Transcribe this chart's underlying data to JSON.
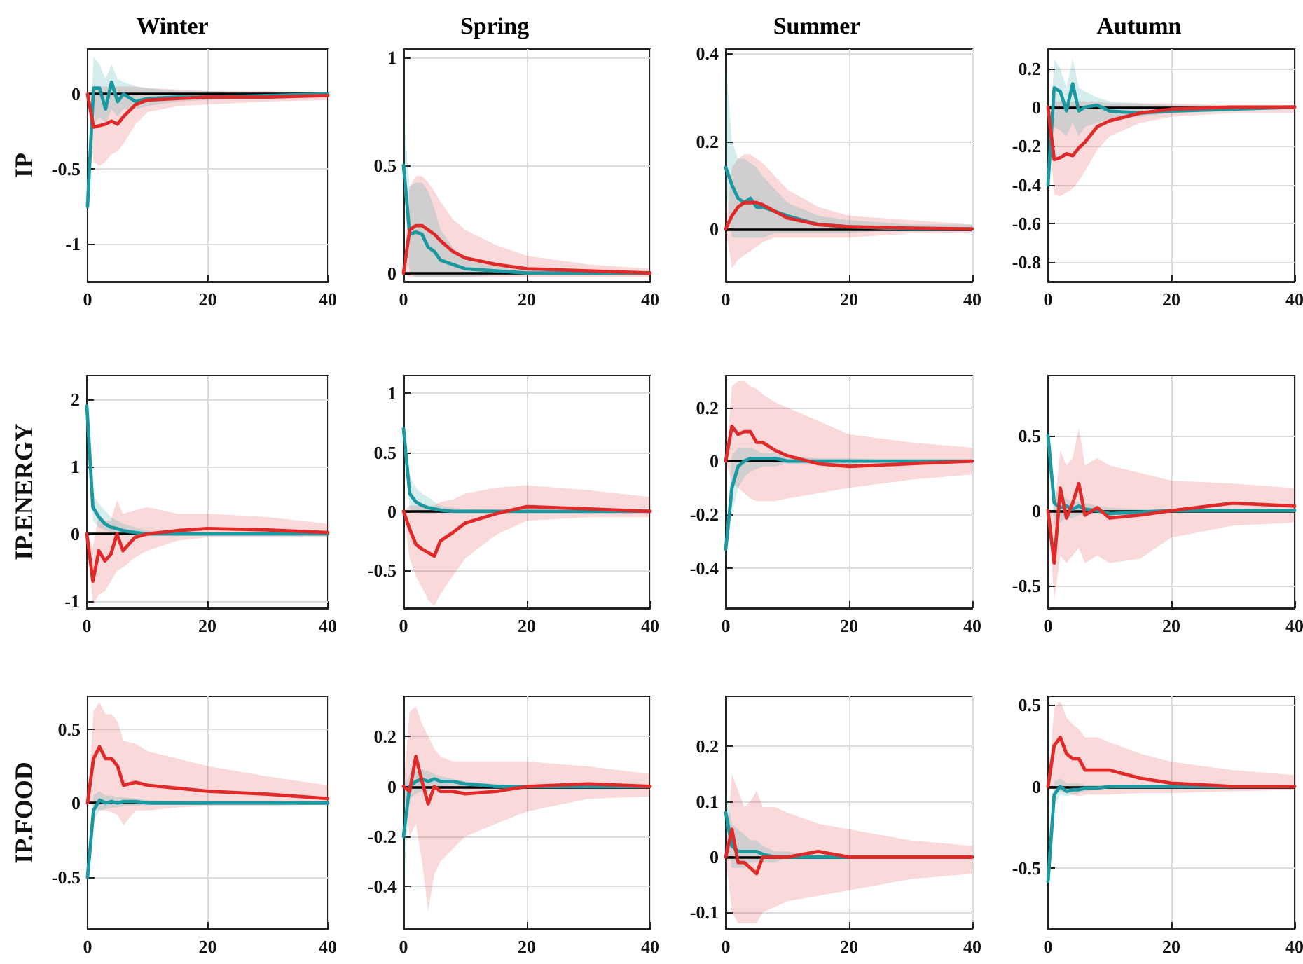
{
  "chart_data": [
    {
      "type": "line",
      "title": "Winter",
      "ylabel": "IP",
      "x": [
        0,
        1,
        2,
        3,
        4,
        5,
        6,
        8,
        10,
        15,
        20,
        30,
        40
      ],
      "xlim": [
        0,
        40
      ],
      "xticks": [
        0,
        20,
        40
      ],
      "ylim": [
        -1.25,
        0.3
      ],
      "yticks": [
        -1,
        -0.5,
        0
      ],
      "grid": true,
      "ref_lines": [
        {
          "axis": "y",
          "value": 0,
          "color": "#000000"
        }
      ],
      "series": [
        {
          "color": "#e02a2a",
          "values": [
            0,
            -0.22,
            -0.21,
            -0.2,
            -0.18,
            -0.2,
            -0.15,
            -0.07,
            -0.04,
            -0.03,
            -0.02,
            -0.02,
            -0.01
          ],
          "lower": [
            0,
            -0.45,
            -0.48,
            -0.45,
            -0.4,
            -0.38,
            -0.33,
            -0.2,
            -0.12,
            -0.08,
            -0.07,
            -0.05,
            -0.04
          ],
          "upper": [
            0,
            0.05,
            0.05,
            0.05,
            0.05,
            0.05,
            0.05,
            0.05,
            0.04,
            0.03,
            0.02,
            0.02,
            0.01
          ]
        },
        {
          "color": "#1a9aa0",
          "values": [
            -0.75,
            0.04,
            0.04,
            -0.1,
            0.08,
            -0.05,
            0,
            -0.05,
            -0.03,
            -0.02,
            -0.02,
            -0.01,
            0
          ],
          "lower": [
            -0.75,
            -0.2,
            -0.15,
            -0.2,
            -0.1,
            -0.15,
            -0.1,
            -0.1,
            -0.08,
            -0.05,
            -0.04,
            -0.02,
            -0.01
          ],
          "upper": [
            -0.75,
            0.25,
            0.2,
            0.1,
            0.2,
            0.1,
            0.08,
            0.05,
            0.04,
            0.02,
            0.02,
            0.01,
            0.01
          ]
        }
      ]
    },
    {
      "type": "line",
      "title": "Spring",
      "x": [
        0,
        1,
        2,
        3,
        4,
        5,
        6,
        8,
        10,
        15,
        20,
        30,
        40
      ],
      "xlim": [
        0,
        40
      ],
      "xticks": [
        0,
        20,
        40
      ],
      "ylim": [
        -0.04,
        1.04
      ],
      "yticks": [
        0,
        0.5,
        1
      ],
      "grid": true,
      "ref_lines": [
        {
          "axis": "y",
          "value": 0,
          "color": "#000000"
        }
      ],
      "series": [
        {
          "color": "#e02a2a",
          "values": [
            0,
            0.2,
            0.22,
            0.22,
            0.2,
            0.18,
            0.15,
            0.1,
            0.07,
            0.04,
            0.02,
            0.01,
            0
          ],
          "lower": [
            0,
            -0.02,
            -0.02,
            -0.02,
            -0.02,
            -0.02,
            -0.02,
            -0.02,
            -0.02,
            -0.02,
            -0.02,
            -0.02,
            -0.02
          ],
          "upper": [
            0,
            0.4,
            0.45,
            0.45,
            0.42,
            0.38,
            0.33,
            0.25,
            0.2,
            0.13,
            0.08,
            0.04,
            0.02
          ]
        },
        {
          "color": "#1a9aa0",
          "values": [
            0.5,
            0.18,
            0.19,
            0.18,
            0.12,
            0.1,
            0.06,
            0.04,
            0.02,
            0.01,
            0,
            0,
            0
          ],
          "lower": [
            0.45,
            0,
            -0.02,
            -0.02,
            -0.02,
            -0.02,
            -0.02,
            -0.02,
            -0.02,
            -0.01,
            -0.01,
            -0.01,
            -0.01
          ],
          "upper": [
            0.75,
            0.4,
            0.42,
            0.42,
            0.38,
            0.3,
            0.2,
            0.12,
            0.06,
            0.03,
            0.02,
            0.01,
            0.01
          ]
        }
      ]
    },
    {
      "type": "line",
      "title": "Summer",
      "x": [
        0,
        1,
        2,
        3,
        4,
        5,
        6,
        8,
        10,
        15,
        20,
        30,
        40
      ],
      "xlim": [
        0,
        40
      ],
      "xticks": [
        0,
        20,
        40
      ],
      "ylim": [
        -0.12,
        0.41
      ],
      "yticks": [
        0,
        0.2,
        0.4
      ],
      "grid": true,
      "ref_lines": [
        {
          "axis": "y",
          "value": 0,
          "color": "#000000"
        }
      ],
      "series": [
        {
          "color": "#e02a2a",
          "values": [
            0,
            0.03,
            0.05,
            0.06,
            0.06,
            0.06,
            0.055,
            0.04,
            0.025,
            0.01,
            0.005,
            0.002,
            0
          ],
          "lower": [
            0,
            -0.09,
            -0.07,
            -0.06,
            -0.05,
            -0.04,
            -0.03,
            -0.02,
            -0.02,
            -0.02,
            -0.02,
            -0.01,
            -0.01
          ],
          "upper": [
            0,
            0.14,
            0.16,
            0.17,
            0.17,
            0.16,
            0.15,
            0.12,
            0.09,
            0.05,
            0.03,
            0.02,
            0.01
          ]
        },
        {
          "color": "#1a9aa0",
          "values": [
            0.14,
            0.1,
            0.07,
            0.06,
            0.07,
            0.05,
            0.05,
            0.04,
            0.03,
            0.01,
            0.005,
            0,
            0
          ],
          "lower": [
            0.1,
            -0.02,
            -0.02,
            -0.02,
            -0.02,
            -0.02,
            -0.02,
            -0.01,
            -0.01,
            -0.01,
            -0.01,
            0,
            0
          ],
          "upper": [
            0.38,
            0.2,
            0.16,
            0.16,
            0.15,
            0.14,
            0.12,
            0.09,
            0.06,
            0.03,
            0.02,
            0.01,
            0.01
          ]
        }
      ]
    },
    {
      "type": "line",
      "title": "Autumn",
      "x": [
        0,
        1,
        2,
        3,
        4,
        5,
        6,
        8,
        10,
        15,
        20,
        30,
        40
      ],
      "xlim": [
        0,
        40
      ],
      "xticks": [
        0,
        20,
        40
      ],
      "ylim": [
        -0.9,
        0.3
      ],
      "yticks": [
        -0.8,
        -0.6,
        -0.4,
        -0.2,
        0,
        0.2
      ],
      "grid": true,
      "ref_lines": [
        {
          "axis": "y",
          "value": 0,
          "color": "#000000"
        }
      ],
      "series": [
        {
          "color": "#e02a2a",
          "values": [
            0,
            -0.27,
            -0.26,
            -0.24,
            -0.25,
            -0.21,
            -0.18,
            -0.1,
            -0.07,
            -0.03,
            -0.01,
            0,
            0
          ],
          "lower": [
            0,
            -0.45,
            -0.46,
            -0.44,
            -0.42,
            -0.38,
            -0.33,
            -0.22,
            -0.15,
            -0.08,
            -0.05,
            -0.03,
            -0.03
          ],
          "upper": [
            0,
            0.03,
            0.03,
            0.03,
            0.03,
            0.03,
            0.03,
            0.03,
            0.02,
            0.02,
            0.02,
            0.01,
            0.01
          ]
        },
        {
          "color": "#1a9aa0",
          "values": [
            -0.4,
            0.1,
            0.08,
            -0.02,
            0.12,
            -0.02,
            0,
            0.01,
            -0.02,
            -0.03,
            -0.02,
            -0.01,
            0
          ],
          "lower": [
            -0.45,
            -0.1,
            -0.12,
            -0.15,
            -0.08,
            -0.15,
            -0.1,
            -0.08,
            -0.06,
            -0.05,
            -0.03,
            -0.02,
            -0.01
          ],
          "upper": [
            -0.35,
            0.25,
            0.2,
            0.1,
            0.25,
            0.1,
            0.08,
            0.05,
            0.03,
            0.02,
            0.01,
            0.01,
            0.01
          ]
        }
      ]
    },
    {
      "type": "line",
      "ylabel": "IP.ENERGY",
      "x": [
        0,
        1,
        2,
        3,
        4,
        5,
        6,
        8,
        10,
        15,
        20,
        30,
        40
      ],
      "xlim": [
        0,
        40
      ],
      "xticks": [
        0,
        20,
        40
      ],
      "ylim": [
        -1.1,
        2.35
      ],
      "yticks": [
        -1,
        0,
        1,
        2
      ],
      "grid": true,
      "ref_lines": [
        {
          "axis": "y",
          "value": 0,
          "color": "#000000"
        }
      ],
      "series": [
        {
          "color": "#e02a2a",
          "values": [
            0,
            -0.7,
            -0.25,
            -0.4,
            -0.3,
            0,
            -0.25,
            -0.05,
            0,
            0.05,
            0.08,
            0.06,
            0.02
          ],
          "lower": [
            0,
            -1.05,
            -0.9,
            -0.85,
            -0.7,
            -0.55,
            -0.5,
            -0.35,
            -0.25,
            -0.1,
            -0.05,
            -0.05,
            -0.05
          ],
          "upper": [
            0,
            -0.2,
            0.3,
            0.2,
            0.2,
            0.5,
            0.3,
            0.35,
            0.4,
            0.3,
            0.3,
            0.25,
            0.15
          ]
        },
        {
          "color": "#1a9aa0",
          "values": [
            1.9,
            0.4,
            0.25,
            0.15,
            0.1,
            0.08,
            0.05,
            0.02,
            0,
            0,
            0,
            0,
            0
          ],
          "lower": [
            1.9,
            0.2,
            0.1,
            0.05,
            0.03,
            0.02,
            0,
            -0.02,
            -0.02,
            -0.02,
            -0.01,
            -0.01,
            -0.01
          ],
          "upper": [
            2,
            0.6,
            0.45,
            0.35,
            0.25,
            0.2,
            0.15,
            0.1,
            0.05,
            0.03,
            0.02,
            0.02,
            0.01
          ]
        }
      ]
    },
    {
      "type": "line",
      "x": [
        0,
        1,
        2,
        3,
        4,
        5,
        6,
        8,
        10,
        15,
        20,
        30,
        40
      ],
      "xlim": [
        0,
        40
      ],
      "xticks": [
        0,
        20,
        40
      ],
      "ylim": [
        -0.82,
        1.15
      ],
      "yticks": [
        -0.5,
        0,
        0.5,
        1
      ],
      "grid": true,
      "ref_lines": [
        {
          "axis": "y",
          "value": 0,
          "color": "#000000"
        }
      ],
      "series": [
        {
          "color": "#e02a2a",
          "values": [
            0,
            -0.15,
            -0.28,
            -0.32,
            -0.35,
            -0.38,
            -0.25,
            -0.18,
            -0.1,
            -0.02,
            0.04,
            0.02,
            0
          ],
          "lower": [
            0,
            -0.4,
            -0.55,
            -0.65,
            -0.75,
            -0.8,
            -0.7,
            -0.55,
            -0.4,
            -0.2,
            -0.08,
            -0.05,
            -0.05
          ],
          "upper": [
            0,
            0.05,
            0.05,
            0.06,
            0.05,
            0.05,
            0.08,
            0.1,
            0.15,
            0.2,
            0.22,
            0.18,
            0.12
          ]
        },
        {
          "color": "#1a9aa0",
          "values": [
            0.7,
            0.15,
            0.08,
            0.05,
            0.03,
            0.02,
            0.01,
            0,
            0,
            0,
            0,
            0,
            0
          ],
          "lower": [
            0.7,
            0.02,
            0,
            -0.02,
            -0.02,
            -0.02,
            -0.01,
            -0.01,
            -0.01,
            -0.01,
            -0.01,
            -0.01,
            0
          ],
          "upper": [
            0.75,
            0.3,
            0.2,
            0.15,
            0.12,
            0.08,
            0.05,
            0.03,
            0.02,
            0.01,
            0.01,
            0.01,
            0
          ]
        }
      ]
    },
    {
      "type": "line",
      "x": [
        0,
        1,
        2,
        3,
        4,
        5,
        6,
        8,
        10,
        15,
        20,
        30,
        40
      ],
      "xlim": [
        0,
        40
      ],
      "xticks": [
        0,
        20,
        40
      ],
      "ylim": [
        -0.55,
        0.32
      ],
      "yticks": [
        -0.4,
        -0.2,
        0,
        0.2
      ],
      "grid": true,
      "ref_lines": [
        {
          "axis": "y",
          "value": 0,
          "color": "#000000"
        }
      ],
      "series": [
        {
          "color": "#e02a2a",
          "values": [
            0,
            0.13,
            0.1,
            0.11,
            0.11,
            0.07,
            0.07,
            0.04,
            0.02,
            -0.01,
            -0.02,
            -0.01,
            0
          ],
          "lower": [
            0,
            -0.08,
            -0.1,
            -0.12,
            -0.14,
            -0.15,
            -0.15,
            -0.15,
            -0.14,
            -0.12,
            -0.1,
            -0.07,
            -0.05
          ],
          "upper": [
            0,
            0.28,
            0.3,
            0.3,
            0.28,
            0.27,
            0.25,
            0.22,
            0.2,
            0.15,
            0.1,
            0.07,
            0.05
          ]
        },
        {
          "color": "#1a9aa0",
          "values": [
            -0.33,
            -0.1,
            -0.02,
            0,
            0.01,
            0.01,
            0.01,
            0.01,
            0,
            0,
            0,
            0,
            0
          ],
          "lower": [
            -0.35,
            -0.2,
            -0.1,
            -0.06,
            -0.04,
            -0.03,
            -0.02,
            -0.02,
            -0.01,
            -0.01,
            -0.01,
            0,
            0
          ],
          "upper": [
            -0.3,
            0.02,
            0.05,
            0.05,
            0.05,
            0.04,
            0.03,
            0.03,
            0.02,
            0.01,
            0.01,
            0,
            0
          ]
        }
      ]
    },
    {
      "type": "line",
      "x": [
        0,
        1,
        2,
        3,
        4,
        5,
        6,
        8,
        10,
        15,
        20,
        30,
        40
      ],
      "xlim": [
        0,
        40
      ],
      "xticks": [
        0,
        20,
        40
      ],
      "ylim": [
        -0.65,
        0.9
      ],
      "yticks": [
        -0.5,
        0,
        0.5
      ],
      "grid": true,
      "ref_lines": [
        {
          "axis": "y",
          "value": 0,
          "color": "#000000"
        }
      ],
      "series": [
        {
          "color": "#e02a2a",
          "values": [
            0,
            -0.35,
            0.15,
            -0.05,
            0.05,
            0.18,
            -0.03,
            0.02,
            -0.05,
            -0.03,
            0,
            0.05,
            0.03
          ],
          "lower": [
            0,
            -0.6,
            -0.3,
            -0.35,
            -0.3,
            -0.25,
            -0.35,
            -0.3,
            -0.35,
            -0.32,
            -0.18,
            -0.1,
            -0.08
          ],
          "upper": [
            0,
            0,
            0.4,
            0.3,
            0.35,
            0.55,
            0.3,
            0.35,
            0.3,
            0.25,
            0.2,
            0.18,
            0.15
          ]
        },
        {
          "color": "#1a9aa0",
          "values": [
            0.5,
            0.05,
            0.02,
            0.03,
            0.01,
            0.03,
            0.01,
            0,
            -0.02,
            -0.01,
            0,
            0,
            0
          ],
          "lower": [
            0.45,
            -0.1,
            -0.08,
            -0.05,
            -0.05,
            -0.03,
            -0.03,
            -0.02,
            -0.03,
            -0.02,
            -0.01,
            -0.01,
            0
          ],
          "upper": [
            0.55,
            0.15,
            0.1,
            0.08,
            0.06,
            0.06,
            0.05,
            0.03,
            0.02,
            0.01,
            0.01,
            0.01,
            0
          ]
        }
      ]
    },
    {
      "type": "line",
      "ylabel": "IP.FOOD",
      "x": [
        0,
        1,
        2,
        3,
        4,
        5,
        6,
        8,
        10,
        15,
        20,
        30,
        40
      ],
      "xlim": [
        0,
        40
      ],
      "xticks": [
        0,
        20,
        40
      ],
      "ylim": [
        -0.85,
        0.72
      ],
      "yticks": [
        -0.5,
        0,
        0.5
      ],
      "grid": true,
      "ref_lines": [
        {
          "axis": "y",
          "value": 0,
          "color": "#000000"
        }
      ],
      "series": [
        {
          "color": "#e02a2a",
          "values": [
            0,
            0.3,
            0.38,
            0.3,
            0.3,
            0.25,
            0.12,
            0.14,
            0.12,
            0.1,
            0.08,
            0.06,
            0.03
          ],
          "lower": [
            0,
            -0.02,
            -0.05,
            -0.05,
            -0.06,
            -0.08,
            -0.15,
            -0.05,
            -0.05,
            -0.03,
            -0.02,
            -0.02,
            -0.01
          ],
          "upper": [
            0,
            0.62,
            0.68,
            0.6,
            0.6,
            0.55,
            0.42,
            0.4,
            0.35,
            0.3,
            0.25,
            0.18,
            0.12
          ]
        },
        {
          "color": "#1a9aa0",
          "values": [
            -0.5,
            -0.05,
            0.02,
            0,
            0.01,
            0,
            0.01,
            0.01,
            0,
            0,
            0,
            0,
            0
          ],
          "lower": [
            -0.55,
            -0.12,
            -0.05,
            -0.04,
            -0.03,
            -0.03,
            -0.02,
            -0.02,
            -0.01,
            -0.01,
            -0.01,
            0,
            0
          ],
          "upper": [
            -0.45,
            0.05,
            0.08,
            0.05,
            0.05,
            0.04,
            0.04,
            0.03,
            0.02,
            0.01,
            0.01,
            0,
            0
          ]
        }
      ]
    },
    {
      "type": "line",
      "x": [
        0,
        1,
        2,
        3,
        4,
        5,
        6,
        8,
        10,
        15,
        20,
        30,
        40
      ],
      "xlim": [
        0,
        40
      ],
      "xticks": [
        0,
        20,
        40
      ],
      "ylim": [
        -0.57,
        0.36
      ],
      "yticks": [
        -0.4,
        -0.2,
        0,
        0.2
      ],
      "grid": true,
      "ref_lines": [
        {
          "axis": "y",
          "value": 0,
          "color": "#000000"
        }
      ],
      "series": [
        {
          "color": "#e02a2a",
          "values": [
            0,
            -0.02,
            0.12,
            0.02,
            -0.07,
            0,
            -0.02,
            -0.02,
            -0.03,
            -0.02,
            0,
            0.01,
            0
          ],
          "lower": [
            0,
            -0.2,
            -0.15,
            -0.3,
            -0.5,
            -0.35,
            -0.3,
            -0.25,
            -0.2,
            -0.15,
            -0.1,
            -0.05,
            -0.04
          ],
          "upper": [
            0,
            0.3,
            0.32,
            0.25,
            0.2,
            0.15,
            0.12,
            0.1,
            0.1,
            0.1,
            0.1,
            0.08,
            0.05
          ]
        },
        {
          "color": "#1a9aa0",
          "values": [
            -0.2,
            0,
            0.02,
            0.03,
            0.02,
            0.03,
            0.02,
            0.02,
            0.01,
            0,
            0,
            0,
            0
          ],
          "lower": [
            -0.4,
            -0.05,
            -0.03,
            -0.02,
            -0.02,
            -0.01,
            -0.01,
            -0.01,
            -0.01,
            0,
            0,
            0,
            0
          ],
          "upper": [
            0,
            0.05,
            0.06,
            0.07,
            0.06,
            0.05,
            0.04,
            0.03,
            0.02,
            0.01,
            0,
            0,
            0
          ]
        }
      ]
    },
    {
      "type": "line",
      "x": [
        0,
        1,
        2,
        3,
        4,
        5,
        6,
        8,
        10,
        15,
        20,
        30,
        40
      ],
      "xlim": [
        0,
        40
      ],
      "xticks": [
        0,
        20,
        40
      ],
      "ylim": [
        -0.13,
        0.29
      ],
      "yticks": [
        -0.1,
        0,
        0.1,
        0.2
      ],
      "grid": true,
      "ref_lines": [
        {
          "axis": "y",
          "value": 0,
          "color": "#000000"
        }
      ],
      "series": [
        {
          "color": "#e02a2a",
          "values": [
            0,
            0.05,
            -0.01,
            -0.01,
            -0.02,
            -0.03,
            0,
            0,
            0,
            0.01,
            0,
            0,
            0
          ],
          "lower": [
            0,
            -0.1,
            -0.12,
            -0.12,
            -0.12,
            -0.12,
            -0.1,
            -0.09,
            -0.08,
            -0.07,
            -0.06,
            -0.04,
            -0.03
          ],
          "upper": [
            0,
            0.15,
            0.12,
            0.09,
            0.1,
            0.12,
            0.09,
            0.09,
            0.08,
            0.06,
            0.05,
            0.03,
            0.02
          ]
        },
        {
          "color": "#1a9aa0",
          "values": [
            0.08,
            0.02,
            0.01,
            0.01,
            0.01,
            0.01,
            0.005,
            0,
            0,
            0,
            0,
            0,
            0
          ],
          "lower": [
            0.05,
            -0.02,
            -0.02,
            -0.02,
            -0.01,
            -0.01,
            -0.01,
            -0.01,
            0,
            0,
            0,
            0,
            0
          ],
          "upper": [
            0.12,
            0.06,
            0.05,
            0.04,
            0.03,
            0.03,
            0.02,
            0.01,
            0.01,
            0,
            0,
            0,
            0
          ]
        }
      ]
    },
    {
      "type": "line",
      "x": [
        0,
        1,
        2,
        3,
        4,
        5,
        6,
        8,
        10,
        15,
        20,
        30,
        40
      ],
      "xlim": [
        0,
        40
      ],
      "xticks": [
        0,
        20,
        40
      ],
      "ylim": [
        -0.87,
        0.55
      ],
      "yticks": [
        -0.5,
        0,
        0.5
      ],
      "grid": true,
      "ref_lines": [
        {
          "axis": "y",
          "value": 0,
          "color": "#000000"
        }
      ],
      "series": [
        {
          "color": "#e02a2a",
          "values": [
            0,
            0.25,
            0.3,
            0.2,
            0.17,
            0.17,
            0.1,
            0.1,
            0.1,
            0.05,
            0.02,
            0,
            0
          ],
          "lower": [
            0,
            -0.02,
            -0.03,
            -0.04,
            -0.05,
            -0.06,
            -0.05,
            -0.05,
            -0.05,
            -0.04,
            -0.04,
            -0.03,
            -0.02
          ],
          "upper": [
            0,
            0.48,
            0.52,
            0.42,
            0.38,
            0.35,
            0.3,
            0.3,
            0.27,
            0.2,
            0.15,
            0.1,
            0.07
          ]
        },
        {
          "color": "#1a9aa0",
          "values": [
            -0.58,
            -0.05,
            0,
            -0.03,
            -0.02,
            -0.02,
            -0.01,
            -0.01,
            0,
            0,
            0,
            0,
            0
          ],
          "lower": [
            -0.6,
            -0.12,
            -0.05,
            -0.06,
            -0.05,
            -0.04,
            -0.03,
            -0.02,
            -0.01,
            -0.01,
            0,
            0,
            0
          ],
          "upper": [
            -0.55,
            0.03,
            0.05,
            0.02,
            0.02,
            0.02,
            0.01,
            0.01,
            0.01,
            0,
            0,
            0,
            0
          ]
        }
      ]
    }
  ]
}
